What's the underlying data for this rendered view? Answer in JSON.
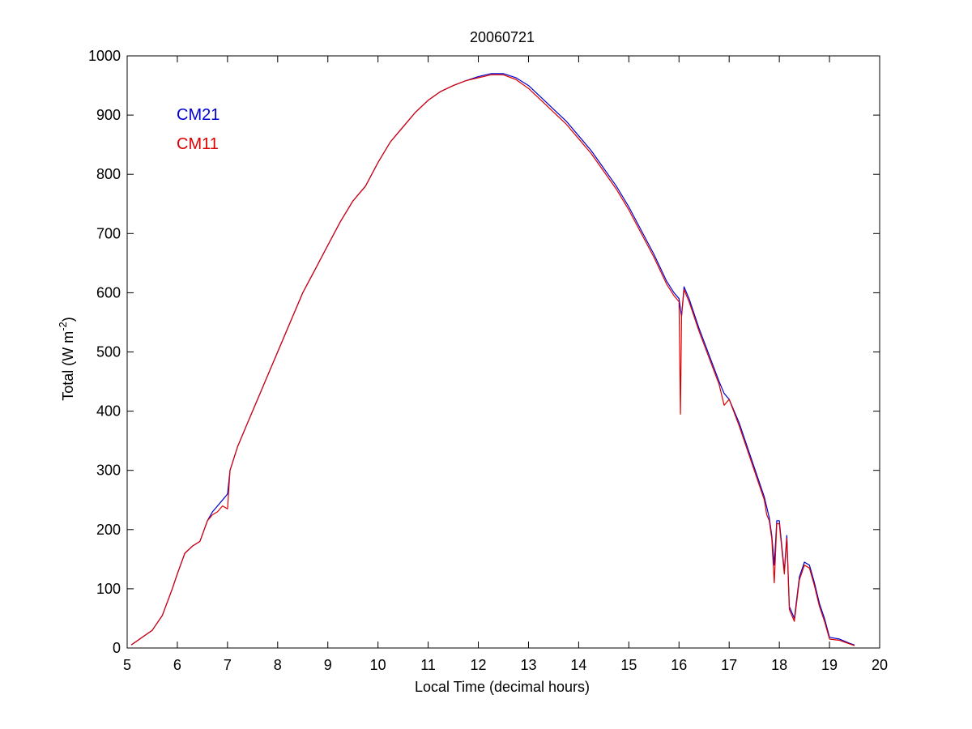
{
  "chart_data": {
    "type": "line",
    "title": "20060721",
    "xlabel": "Local Time (decimal hours)",
    "ylabel": {
      "main": "Total (W m",
      "sup": "-2",
      "close": ")"
    },
    "xlim": [
      5,
      20
    ],
    "ylim": [
      0,
      1000
    ],
    "xticks": [
      "5",
      "6",
      "7",
      "8",
      "9",
      "10",
      "11",
      "12",
      "13",
      "14",
      "15",
      "16",
      "17",
      "18",
      "19",
      "20"
    ],
    "yticks": [
      "0",
      "100",
      "200",
      "300",
      "400",
      "500",
      "600",
      "700",
      "800",
      "900",
      "1000"
    ],
    "grid": false,
    "legend_position": "top-left",
    "series": [
      {
        "name": "CM21",
        "color": "#0000cc",
        "x": [
          5.08,
          5.3,
          5.5,
          5.7,
          5.9,
          6.0,
          6.15,
          6.3,
          6.45,
          6.6,
          6.7,
          6.8,
          6.9,
          7.0,
          7.05,
          7.2,
          7.4,
          7.6,
          7.8,
          8.0,
          8.25,
          8.5,
          8.75,
          9.0,
          9.25,
          9.5,
          9.75,
          10.0,
          10.25,
          10.5,
          10.75,
          11.0,
          11.25,
          11.5,
          11.75,
          12.0,
          12.25,
          12.5,
          12.75,
          13.0,
          13.25,
          13.5,
          13.75,
          14.0,
          14.25,
          14.5,
          14.75,
          15.0,
          15.25,
          15.5,
          15.75,
          15.9,
          16.0,
          16.05,
          16.1,
          16.2,
          16.4,
          16.6,
          16.8,
          16.9,
          17.0,
          17.2,
          17.4,
          17.6,
          17.7,
          17.8,
          17.85,
          17.9,
          17.95,
          18.0,
          18.1,
          18.15,
          18.2,
          18.3,
          18.4,
          18.5,
          18.6,
          18.7,
          18.8,
          18.9,
          19.0,
          19.2,
          19.4,
          19.5
        ],
        "y": [
          5,
          18,
          30,
          55,
          100,
          125,
          160,
          172,
          180,
          215,
          230,
          240,
          250,
          260,
          300,
          340,
          380,
          420,
          460,
          500,
          550,
          600,
          640,
          680,
          720,
          755,
          780,
          820,
          855,
          880,
          905,
          925,
          940,
          950,
          958,
          965,
          970,
          970,
          963,
          950,
          930,
          910,
          890,
          865,
          840,
          810,
          780,
          745,
          705,
          665,
          620,
          600,
          590,
          560,
          610,
          590,
          540,
          495,
          450,
          430,
          420,
          380,
          330,
          280,
          255,
          220,
          190,
          140,
          215,
          215,
          130,
          190,
          70,
          50,
          120,
          145,
          140,
          110,
          75,
          50,
          18,
          15,
          8,
          5
        ]
      },
      {
        "name": "CM11",
        "color": "#dd0000",
        "x": [
          5.08,
          5.3,
          5.5,
          5.7,
          5.9,
          6.0,
          6.15,
          6.3,
          6.45,
          6.6,
          6.7,
          6.8,
          6.9,
          7.0,
          7.05,
          7.2,
          7.4,
          7.6,
          7.8,
          8.0,
          8.25,
          8.5,
          8.75,
          9.0,
          9.25,
          9.5,
          9.75,
          10.0,
          10.25,
          10.5,
          10.75,
          11.0,
          11.25,
          11.5,
          11.75,
          12.0,
          12.25,
          12.5,
          12.75,
          13.0,
          13.25,
          13.5,
          13.75,
          14.0,
          14.25,
          14.5,
          14.75,
          15.0,
          15.25,
          15.5,
          15.75,
          15.9,
          16.0,
          16.03,
          16.05,
          16.1,
          16.2,
          16.4,
          16.6,
          16.8,
          16.9,
          17.0,
          17.2,
          17.4,
          17.6,
          17.7,
          17.75,
          17.8,
          17.85,
          17.9,
          17.95,
          18.0,
          18.1,
          18.15,
          18.2,
          18.3,
          18.4,
          18.5,
          18.6,
          18.7,
          18.8,
          18.9,
          19.0,
          19.2,
          19.4,
          19.5
        ],
        "y": [
          5,
          18,
          30,
          55,
          100,
          125,
          160,
          172,
          180,
          215,
          225,
          230,
          240,
          235,
          300,
          340,
          380,
          420,
          460,
          500,
          550,
          600,
          640,
          680,
          720,
          755,
          780,
          820,
          855,
          880,
          905,
          925,
          940,
          950,
          958,
          963,
          968,
          968,
          960,
          945,
          925,
          905,
          885,
          860,
          835,
          805,
          775,
          740,
          700,
          660,
          615,
          595,
          585,
          395,
          560,
          605,
          585,
          535,
          490,
          445,
          410,
          420,
          375,
          325,
          275,
          250,
          225,
          215,
          185,
          110,
          210,
          210,
          125,
          185,
          65,
          45,
          115,
          140,
          135,
          105,
          70,
          45,
          15,
          13,
          7,
          4
        ]
      }
    ]
  }
}
